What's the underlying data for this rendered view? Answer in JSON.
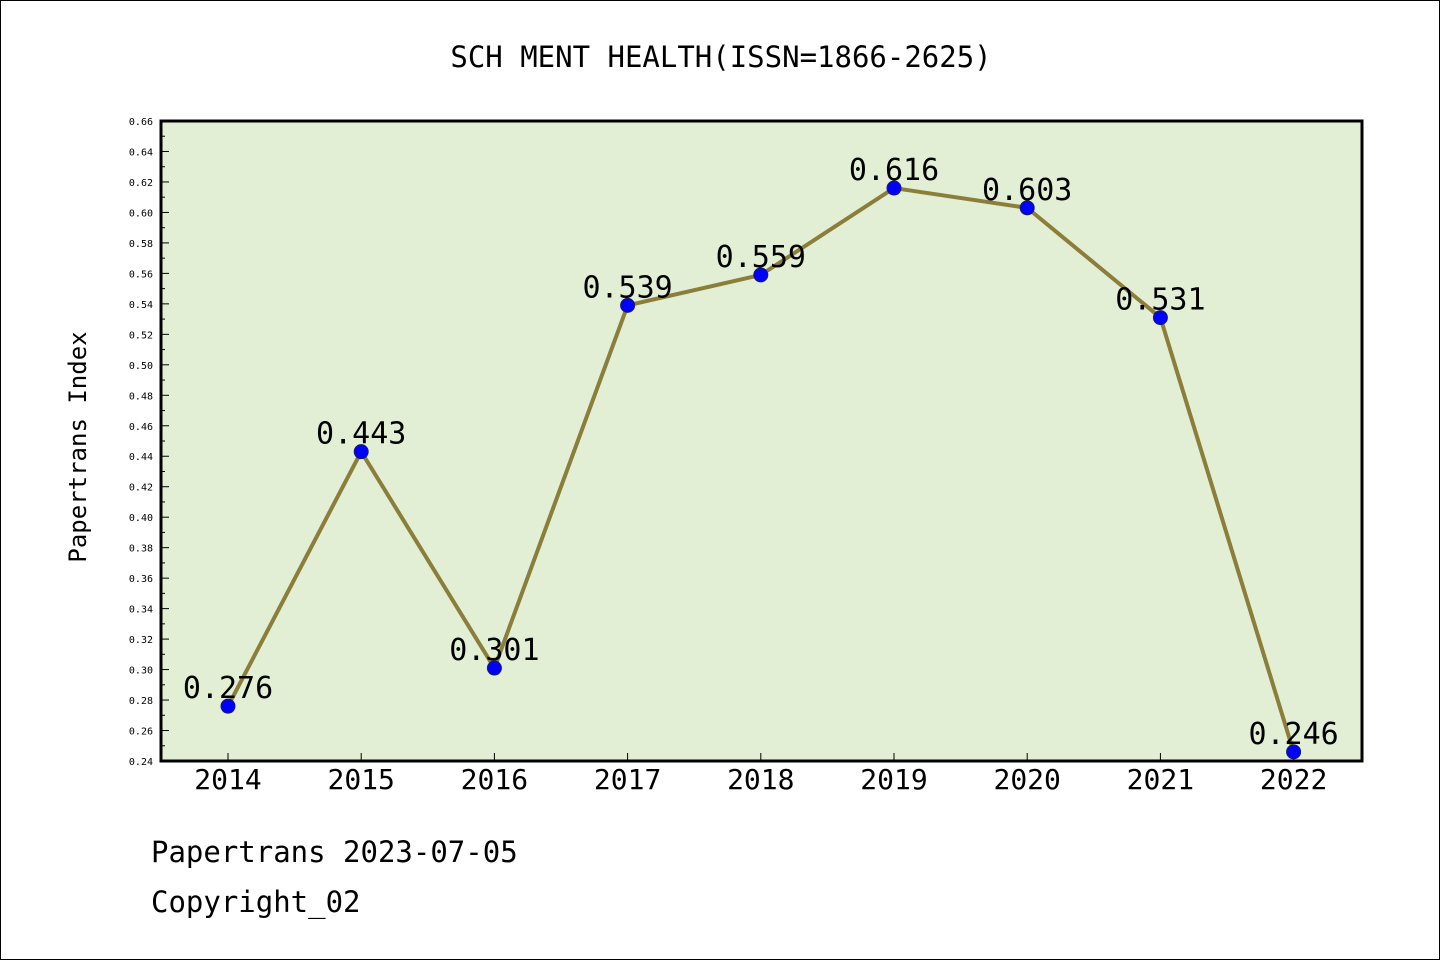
{
  "chart_data": {
    "type": "line",
    "title": "SCH MENT HEALTH(ISSN=1866-2625)",
    "xlabel": "",
    "ylabel": "Papertrans Index",
    "categories": [
      "2014",
      "2015",
      "2016",
      "2017",
      "2018",
      "2019",
      "2020",
      "2021",
      "2022"
    ],
    "series": [
      {
        "values": [
          0.276,
          0.443,
          0.301,
          0.539,
          0.559,
          0.616,
          0.603,
          0.531,
          0.246
        ],
        "data_labels": [
          "0.276",
          "0.443",
          "0.301",
          "0.539",
          "0.559",
          "0.616",
          "0.603",
          "0.531",
          "0.246"
        ],
        "line_color": "#8b7e3a",
        "marker_color": "#0000ff"
      }
    ],
    "ylim": [
      0.24,
      0.66
    ],
    "yticks": [
      "0.24",
      "0.26",
      "0.28",
      "0.30",
      "0.32",
      "0.34",
      "0.36",
      "0.38",
      "0.40",
      "0.42",
      "0.44",
      "0.46",
      "0.48",
      "0.50",
      "0.52",
      "0.54",
      "0.56",
      "0.58",
      "0.60",
      "0.62",
      "0.64",
      "0.66"
    ],
    "grid": false,
    "plot_background": "#e2efd5"
  },
  "footer": {
    "line1": "Papertrans 2023-07-05",
    "line2": "Copyright_02"
  }
}
